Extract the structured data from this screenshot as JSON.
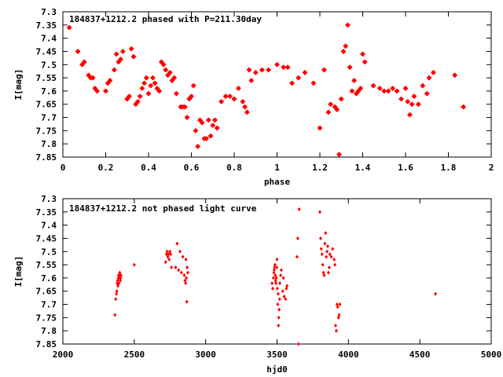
{
  "chart_data": [
    {
      "type": "scatter",
      "title": "184837+1212.2 phased with P=211.30day",
      "xlabel": "phase",
      "ylabel": "I[mag]",
      "xlim": [
        0,
        2
      ],
      "ylim": [
        7.85,
        7.3
      ],
      "y_inverted": true,
      "xticks": [
        "0",
        "0.2",
        "0.4",
        "0.6",
        "0.8",
        "1",
        "1.2",
        "1.4",
        "1.6",
        "1.8",
        "2"
      ],
      "yticks": [
        "7.3",
        "7.35",
        "7.4",
        "7.45",
        "7.5",
        "7.55",
        "7.6",
        "7.65",
        "7.7",
        "7.75",
        "7.8",
        "7.85"
      ],
      "grid": false,
      "marker": "cross",
      "color": "#ff0000",
      "series": [
        {
          "x": [
            0.03,
            0.07,
            0.09,
            0.1,
            0.12,
            0.13,
            0.14,
            0.15,
            0.16,
            0.2,
            0.21,
            0.22,
            0.24,
            0.25,
            0.26,
            0.27,
            0.28,
            0.3,
            0.31,
            0.32,
            0.33,
            0.34,
            0.35,
            0.36,
            0.37,
            0.38,
            0.39,
            0.4,
            0.41,
            0.42,
            0.43,
            0.44,
            0.45,
            0.46,
            0.47,
            0.48,
            0.49,
            0.5,
            0.51,
            0.52,
            0.53,
            0.55,
            0.56,
            0.57,
            0.58,
            0.59,
            0.6,
            0.61,
            0.62,
            0.63,
            0.64,
            0.65,
            0.66,
            0.67,
            0.68,
            0.69,
            0.7,
            0.71,
            0.72,
            0.74,
            0.76,
            0.78,
            0.8,
            0.82,
            0.84,
            0.85,
            0.86,
            0.87,
            0.88,
            0.9,
            0.93,
            0.96,
            1.0,
            1.03,
            1.05,
            1.07,
            1.1,
            1.13,
            1.17,
            1.2,
            1.22,
            1.24,
            1.25,
            1.27,
            1.28,
            1.29,
            1.3,
            1.31,
            1.32,
            1.33,
            1.34,
            1.35,
            1.36,
            1.37,
            1.38,
            1.39,
            1.4,
            1.41,
            1.45,
            1.48,
            1.5,
            1.52,
            1.54,
            1.56,
            1.58,
            1.6,
            1.61,
            1.62,
            1.63,
            1.64,
            1.66,
            1.68,
            1.7,
            1.71,
            1.73,
            1.83,
            1.87
          ],
          "y": [
            7.36,
            7.45,
            7.5,
            7.49,
            7.54,
            7.55,
            7.55,
            7.59,
            7.6,
            7.6,
            7.57,
            7.56,
            7.52,
            7.46,
            7.49,
            7.48,
            7.45,
            7.63,
            7.62,
            7.44,
            7.47,
            7.65,
            7.64,
            7.62,
            7.59,
            7.57,
            7.55,
            7.61,
            7.58,
            7.55,
            7.57,
            7.59,
            7.6,
            7.49,
            7.5,
            7.52,
            7.54,
            7.53,
            7.56,
            7.55,
            7.61,
            7.66,
            7.66,
            7.66,
            7.7,
            7.63,
            7.62,
            7.58,
            7.75,
            7.81,
            7.71,
            7.72,
            7.78,
            7.78,
            7.71,
            7.77,
            7.73,
            7.71,
            7.74,
            7.64,
            7.62,
            7.62,
            7.63,
            7.59,
            7.64,
            7.66,
            7.68,
            7.52,
            7.56,
            7.53,
            7.52,
            7.52,
            7.5,
            7.51,
            7.51,
            7.57,
            7.55,
            7.53,
            7.57,
            7.74,
            7.52,
            7.68,
            7.65,
            7.66,
            7.67,
            7.84,
            7.63,
            7.45,
            7.43,
            7.35,
            7.51,
            7.6,
            7.56,
            7.61,
            7.6,
            7.59,
            7.46,
            7.49,
            7.58,
            7.59,
            7.6,
            7.6,
            7.59,
            7.6,
            7.63,
            7.59,
            7.64,
            7.69,
            7.65,
            7.62,
            7.65,
            7.58,
            7.61,
            7.55,
            7.53,
            7.54,
            7.66
          ]
        }
      ]
    },
    {
      "type": "scatter",
      "title": "184837+1212.2 not phased light curve",
      "xlabel": "hjd0",
      "ylabel": "I[mag]",
      "xlim": [
        2000,
        5000
      ],
      "ylim": [
        7.85,
        7.3
      ],
      "y_inverted": true,
      "xticks": [
        "2000",
        "2500",
        "3000",
        "3500",
        "4000",
        "4500",
        "5000"
      ],
      "yticks": [
        "7.3",
        "7.35",
        "7.4",
        "7.45",
        "7.5",
        "7.55",
        "7.6",
        "7.65",
        "7.7",
        "7.75",
        "7.8",
        "7.85"
      ],
      "grid": false,
      "marker": "diamond",
      "color": "#ff0000",
      "series": [
        {
          "x": [
            2365,
            2370,
            2375,
            2378,
            2380,
            2383,
            2385,
            2388,
            2390,
            2393,
            2395,
            2398,
            2400,
            2402,
            2405,
            2407,
            2500,
            2720,
            2725,
            2730,
            2735,
            2740,
            2745,
            2750,
            2755,
            2760,
            2790,
            2800,
            2810,
            2820,
            2830,
            2840,
            2850,
            2855,
            2860,
            2862,
            2865,
            2868,
            2870,
            2875,
            3465,
            3470,
            3475,
            3478,
            3480,
            3482,
            3485,
            3488,
            3490,
            3492,
            3495,
            3498,
            3500,
            3502,
            3505,
            3508,
            3510,
            3512,
            3515,
            3518,
            3520,
            3525,
            3530,
            3540,
            3545,
            3550,
            3560,
            3565,
            3570,
            3640,
            3645,
            3650,
            3655,
            3800,
            3805,
            3810,
            3815,
            3820,
            3825,
            3830,
            3835,
            3840,
            3845,
            3850,
            3855,
            3860,
            3865,
            3870,
            3880,
            3890,
            3900,
            3905,
            3910,
            3915,
            3920,
            3925,
            3930,
            3935,
            3940,
            4610
          ],
          "y": [
            7.74,
            7.68,
            7.66,
            7.65,
            7.62,
            7.61,
            7.63,
            7.6,
            7.59,
            7.62,
            7.6,
            7.58,
            7.59,
            7.61,
            7.6,
            7.59,
            7.55,
            7.54,
            7.51,
            7.5,
            7.52,
            7.51,
            7.53,
            7.5,
            7.51,
            7.56,
            7.56,
            7.47,
            7.57,
            7.5,
            7.58,
            7.52,
            7.59,
            7.61,
            7.62,
            7.53,
            7.6,
            7.69,
            7.56,
            7.58,
            7.62,
            7.64,
            7.6,
            7.58,
            7.57,
            7.56,
            7.55,
            7.59,
            7.61,
            7.62,
            7.6,
            7.56,
            7.53,
            7.64,
            7.7,
            7.66,
            7.78,
            7.75,
            7.72,
            7.68,
            7.62,
            7.59,
            7.57,
            7.65,
            7.6,
            7.67,
            7.68,
            7.64,
            7.63,
            7.52,
            7.45,
            7.85,
            7.34,
            7.35,
            7.45,
            7.49,
            7.51,
            7.55,
            7.58,
            7.59,
            7.47,
            7.43,
            7.52,
            7.5,
            7.48,
            7.58,
            7.56,
            7.51,
            7.52,
            7.49,
            7.53,
            7.55,
            7.78,
            7.8,
            7.7,
            7.71,
            7.75,
            7.74,
            7.7,
            7.66
          ]
        }
      ]
    }
  ]
}
